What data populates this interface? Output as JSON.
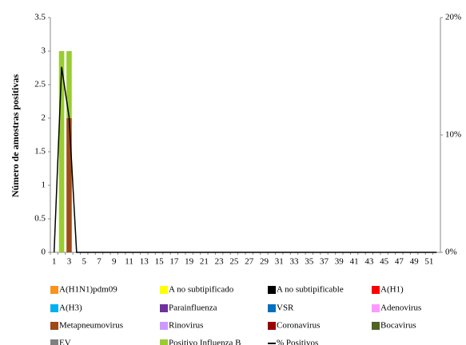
{
  "chart_data": {
    "type": "bar",
    "stacked": true,
    "y_label": "Número de amostras positivas",
    "categories": [
      1,
      null,
      3,
      null,
      5,
      null,
      7,
      null,
      9,
      null,
      11,
      null,
      13,
      null,
      15,
      null,
      17,
      null,
      19,
      null,
      21,
      null,
      23,
      null,
      25,
      null,
      27,
      null,
      29,
      null,
      31,
      null,
      33,
      null,
      35,
      null,
      37,
      null,
      39,
      null,
      41,
      null,
      43,
      null,
      45,
      null,
      47,
      null,
      49,
      null,
      51,
      null
    ],
    "ylim": [
      0,
      3.5
    ],
    "yticks": [
      0,
      0.5,
      1,
      1.5,
      2,
      2.5,
      3,
      3.5
    ],
    "y2lim": [
      0,
      20
    ],
    "y2ticks": [
      {
        "value": 0,
        "label": "0%"
      },
      {
        "value": 10,
        "label": "10%"
      },
      {
        "value": 20,
        "label": "20%"
      }
    ],
    "series": [
      {
        "name": "A(H1N1)pdm09",
        "color": "#f7941d",
        "values": [
          0,
          0,
          0,
          0,
          0,
          0,
          0,
          0,
          0,
          0,
          0,
          0,
          0,
          0,
          0,
          0,
          0,
          0,
          0,
          0,
          0,
          0,
          0,
          0,
          0,
          0,
          0,
          0,
          0,
          0,
          0,
          0,
          0,
          0,
          0,
          0,
          0,
          0,
          0,
          0,
          0,
          0,
          0,
          0,
          0,
          0,
          0,
          0,
          0,
          0,
          0,
          0
        ]
      },
      {
        "name": "A no subtipificado",
        "color": "#ffff00",
        "values": [
          0,
          0,
          0,
          0,
          0,
          0,
          0,
          0,
          0,
          0,
          0,
          0,
          0,
          0,
          0,
          0,
          0,
          0,
          0,
          0,
          0,
          0,
          0,
          0,
          0,
          0,
          0,
          0,
          0,
          0,
          0,
          0,
          0,
          0,
          0,
          0,
          0,
          0,
          0,
          0,
          0,
          0,
          0,
          0,
          0,
          0,
          0,
          0,
          0,
          0,
          0,
          0
        ]
      },
      {
        "name": "A no subtipificable",
        "color": "#000000",
        "values": [
          0,
          0,
          0,
          0,
          0,
          0,
          0,
          0,
          0,
          0,
          0,
          0,
          0,
          0,
          0,
          0,
          0,
          0,
          0,
          0,
          0,
          0,
          0,
          0,
          0,
          0,
          0,
          0,
          0,
          0,
          0,
          0,
          0,
          0,
          0,
          0,
          0,
          0,
          0,
          0,
          0,
          0,
          0,
          0,
          0,
          0,
          0,
          0,
          0,
          0,
          0,
          0
        ]
      },
      {
        "name": "A(H1)",
        "color": "#ff0000",
        "values": [
          0,
          0,
          0,
          0,
          0,
          0,
          0,
          0,
          0,
          0,
          0,
          0,
          0,
          0,
          0,
          0,
          0,
          0,
          0,
          0,
          0,
          0,
          0,
          0,
          0,
          0,
          0,
          0,
          0,
          0,
          0,
          0,
          0,
          0,
          0,
          0,
          0,
          0,
          0,
          0,
          0,
          0,
          0,
          0,
          0,
          0,
          0,
          0,
          0,
          0,
          0,
          0
        ]
      },
      {
        "name": "A(H3)",
        "color": "#00b0f0",
        "values": [
          0,
          0,
          0,
          0,
          0,
          0,
          0,
          0,
          0,
          0,
          0,
          0,
          0,
          0,
          0,
          0,
          0,
          0,
          0,
          0,
          0,
          0,
          0,
          0,
          0,
          0,
          0,
          0,
          0,
          0,
          0,
          0,
          0,
          0,
          0,
          0,
          0,
          0,
          0,
          0,
          0,
          0,
          0,
          0,
          0,
          0,
          0,
          0,
          0,
          0,
          0,
          0
        ]
      },
      {
        "name": "Parainfluenza",
        "color": "#7030a0",
        "values": [
          0,
          0,
          0,
          0,
          0,
          0,
          0,
          0,
          0,
          0,
          0,
          0,
          0,
          0,
          0,
          0,
          0,
          0,
          0,
          0,
          0,
          0,
          0,
          0,
          0,
          0,
          0,
          0,
          0,
          0,
          0,
          0,
          0,
          0,
          0,
          0,
          0,
          0,
          0,
          0,
          0,
          0,
          0,
          0,
          0,
          0,
          0,
          0,
          0,
          0,
          0,
          0
        ]
      },
      {
        "name": "VSR",
        "color": "#0070c0",
        "values": [
          0,
          0,
          0,
          0,
          0,
          0,
          0,
          0,
          0,
          0,
          0,
          0,
          0,
          0,
          0,
          0,
          0,
          0,
          0,
          0,
          0,
          0,
          0,
          0,
          0,
          0,
          0,
          0,
          0,
          0,
          0,
          0,
          0,
          0,
          0,
          0,
          0,
          0,
          0,
          0,
          0,
          0,
          0,
          0,
          0,
          0,
          0,
          0,
          0,
          0,
          0,
          0
        ]
      },
      {
        "name": "Adenovirus",
        "color": "#ff99ff",
        "values": [
          0,
          0,
          0,
          0,
          0,
          0,
          0,
          0,
          0,
          0,
          0,
          0,
          0,
          0,
          0,
          0,
          0,
          0,
          0,
          0,
          0,
          0,
          0,
          0,
          0,
          0,
          0,
          0,
          0,
          0,
          0,
          0,
          0,
          0,
          0,
          0,
          0,
          0,
          0,
          0,
          0,
          0,
          0,
          0,
          0,
          0,
          0,
          0,
          0,
          0,
          0,
          0
        ]
      },
      {
        "name": "Metapneumovirus",
        "color": "#9c4a1a",
        "values": [
          0,
          0,
          2,
          0,
          0,
          0,
          0,
          0,
          0,
          0,
          0,
          0,
          0,
          0,
          0,
          0,
          0,
          0,
          0,
          0,
          0,
          0,
          0,
          0,
          0,
          0,
          0,
          0,
          0,
          0,
          0,
          0,
          0,
          0,
          0,
          0,
          0,
          0,
          0,
          0,
          0,
          0,
          0,
          0,
          0,
          0,
          0,
          0,
          0,
          0,
          0,
          0
        ]
      },
      {
        "name": "Rinovirus",
        "color": "#cc99ff",
        "values": [
          0,
          0,
          0,
          0,
          0,
          0,
          0,
          0,
          0,
          0,
          0,
          0,
          0,
          0,
          0,
          0,
          0,
          0,
          0,
          0,
          0,
          0,
          0,
          0,
          0,
          0,
          0,
          0,
          0,
          0,
          0,
          0,
          0,
          0,
          0,
          0,
          0,
          0,
          0,
          0,
          0,
          0,
          0,
          0,
          0,
          0,
          0,
          0,
          0,
          0,
          0,
          0
        ]
      },
      {
        "name": "Coronavirus",
        "color": "#990000",
        "values": [
          0,
          0,
          0,
          0,
          0,
          0,
          0,
          0,
          0,
          0,
          0,
          0,
          0,
          0,
          0,
          0,
          0,
          0,
          0,
          0,
          0,
          0,
          0,
          0,
          0,
          0,
          0,
          0,
          0,
          0,
          0,
          0,
          0,
          0,
          0,
          0,
          0,
          0,
          0,
          0,
          0,
          0,
          0,
          0,
          0,
          0,
          0,
          0,
          0,
          0,
          0,
          0
        ]
      },
      {
        "name": "Bocavirus",
        "color": "#4f6228",
        "values": [
          0,
          0,
          0,
          0,
          0,
          0,
          0,
          0,
          0,
          0,
          0,
          0,
          0,
          0,
          0,
          0,
          0,
          0,
          0,
          0,
          0,
          0,
          0,
          0,
          0,
          0,
          0,
          0,
          0,
          0,
          0,
          0,
          0,
          0,
          0,
          0,
          0,
          0,
          0,
          0,
          0,
          0,
          0,
          0,
          0,
          0,
          0,
          0,
          0,
          0,
          0,
          0
        ]
      },
      {
        "name": "EV",
        "color": "#808080",
        "values": [
          0,
          0,
          0,
          0,
          0,
          0,
          0,
          0,
          0,
          0,
          0,
          0,
          0,
          0,
          0,
          0,
          0,
          0,
          0,
          0,
          0,
          0,
          0,
          0,
          0,
          0,
          0,
          0,
          0,
          0,
          0,
          0,
          0,
          0,
          0,
          0,
          0,
          0,
          0,
          0,
          0,
          0,
          0,
          0,
          0,
          0,
          0,
          0,
          0,
          0,
          0,
          0
        ]
      },
      {
        "name": "Positivo Influenza  B",
        "color": "#99cc33",
        "values": [
          0,
          3,
          1,
          0,
          0,
          0,
          0,
          0,
          0,
          0,
          0,
          0,
          0,
          0,
          0,
          0,
          0,
          0,
          0,
          0,
          0,
          0,
          0,
          0,
          0,
          0,
          0,
          0,
          0,
          0,
          0,
          0,
          0,
          0,
          0,
          0,
          0,
          0,
          0,
          0,
          0,
          0,
          0,
          0,
          0,
          0,
          0,
          0,
          0,
          0,
          0,
          0
        ]
      },
      {
        "name": "% Positivos",
        "color": "#000000",
        "type": "line",
        "axis": "y2",
        "values": [
          0,
          15.8,
          11.5,
          0,
          0,
          0,
          0,
          0,
          0,
          0,
          0,
          0,
          0,
          0,
          0,
          0,
          0,
          0,
          0,
          0,
          0,
          0,
          0,
          0,
          0,
          0,
          0,
          0,
          0,
          0,
          0,
          0,
          0,
          0,
          0,
          0,
          0,
          0,
          0,
          0,
          0,
          0,
          0,
          0,
          0,
          0,
          0,
          0,
          0,
          0,
          0,
          0
        ]
      }
    ]
  }
}
